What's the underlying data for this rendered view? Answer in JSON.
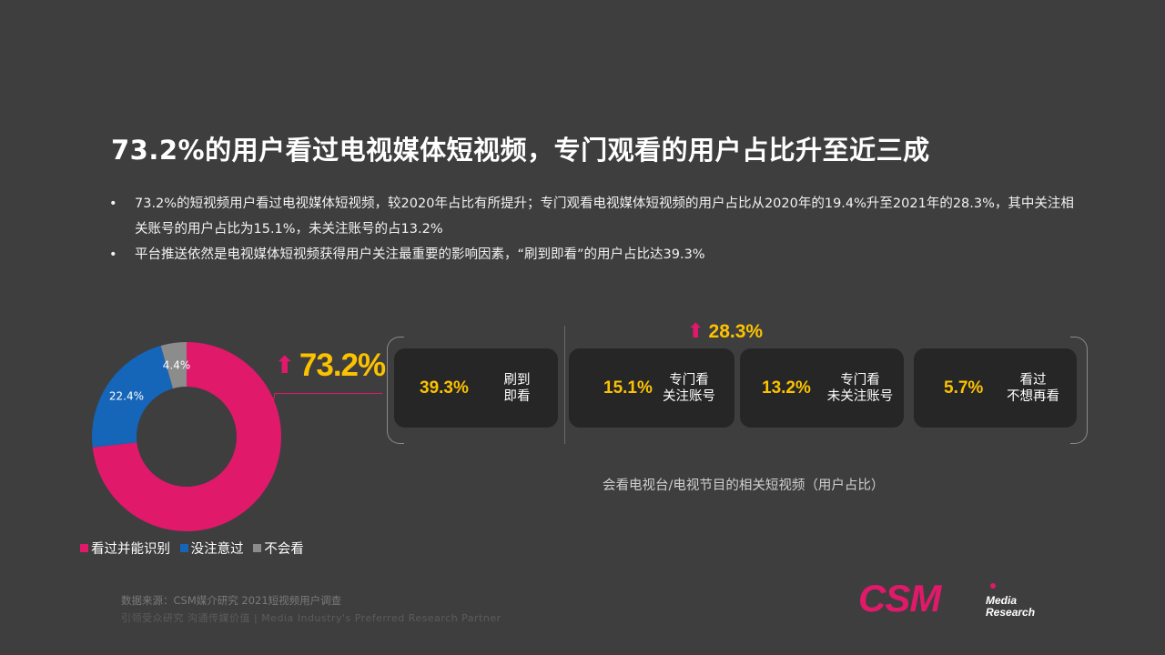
{
  "title": "73.2%的用户看过电视媒体短视频，专门观看的用户占比升至近三成",
  "bullets": [
    "73.2%的短视频用户看过电视媒体短视频，较2020年占比有所提升；专门观看电视媒体短视频的用户占比从2020年的19.4%升至2021年的28.3%，其中关注相关账号的用户占比为15.1%，未关注账号的占13.2%",
    "平台推送依然是电视媒体短视频获得用户关注最重要的影响因素，“刷到即看”的用户占比达39.3%"
  ],
  "bullet_symbol": "•",
  "headline": {
    "arrow": "⬆",
    "value": "73.2%"
  },
  "top_sub": {
    "arrow": "⬆",
    "value": "28.3%"
  },
  "cards": [
    {
      "pct": "39.3%",
      "line1": "刷到",
      "line2": "即看"
    },
    {
      "pct": "15.1%",
      "line1": "专门看",
      "line2": "关注账号"
    },
    {
      "pct": "13.2%",
      "line1": "专门看",
      "line2": "未关注账号"
    },
    {
      "pct": "5.7%",
      "line1": "看过",
      "line2": "不想再看"
    }
  ],
  "subtitle": "会看电视台/电视节目的相关短视频（用户占比）",
  "legend": [
    {
      "label": "看过并能识别",
      "color": "#e0196a"
    },
    {
      "label": "没注意过",
      "color": "#1565b8"
    },
    {
      "label": "不会看",
      "color": "#8c8c8c"
    }
  ],
  "source": "数据来源：CSM媒介研究 2021短视频用户调查",
  "tagline": "引领受众研究  沟通传媒价值 | Media Industry's Preferred Research Partner",
  "logo": {
    "main": "CSM",
    "sub1": "Media",
    "sub2": "Research"
  },
  "colors": {
    "accent": "#e0196a",
    "blue": "#1565b8",
    "gray": "#8c8c8c",
    "highlight": "#fcc200",
    "background": "#3e3e3e"
  },
  "chart_data": [
    {
      "type": "pie",
      "variant": "donut",
      "categories": [
        "看过并能识别",
        "没注意过",
        "不会看"
      ],
      "values": [
        73.2,
        22.4,
        4.4
      ],
      "value_labels": [
        "",
        "22.4%",
        "4.4%"
      ],
      "colors": [
        "#e0196a",
        "#1565b8",
        "#8c8c8c"
      ],
      "legend_position": "bottom"
    },
    {
      "type": "bar",
      "title": "会看电视台/电视节目的相关短视频（用户占比）",
      "categories": [
        "刷到即看",
        "专门看关注账号",
        "专门看未关注账号",
        "看过不想再看"
      ],
      "values": [
        39.3,
        15.1,
        13.2,
        5.7
      ],
      "group_annotation": {
        "categories": [
          "专门看关注账号",
          "专门看未关注账号"
        ],
        "total": 28.3
      }
    }
  ]
}
